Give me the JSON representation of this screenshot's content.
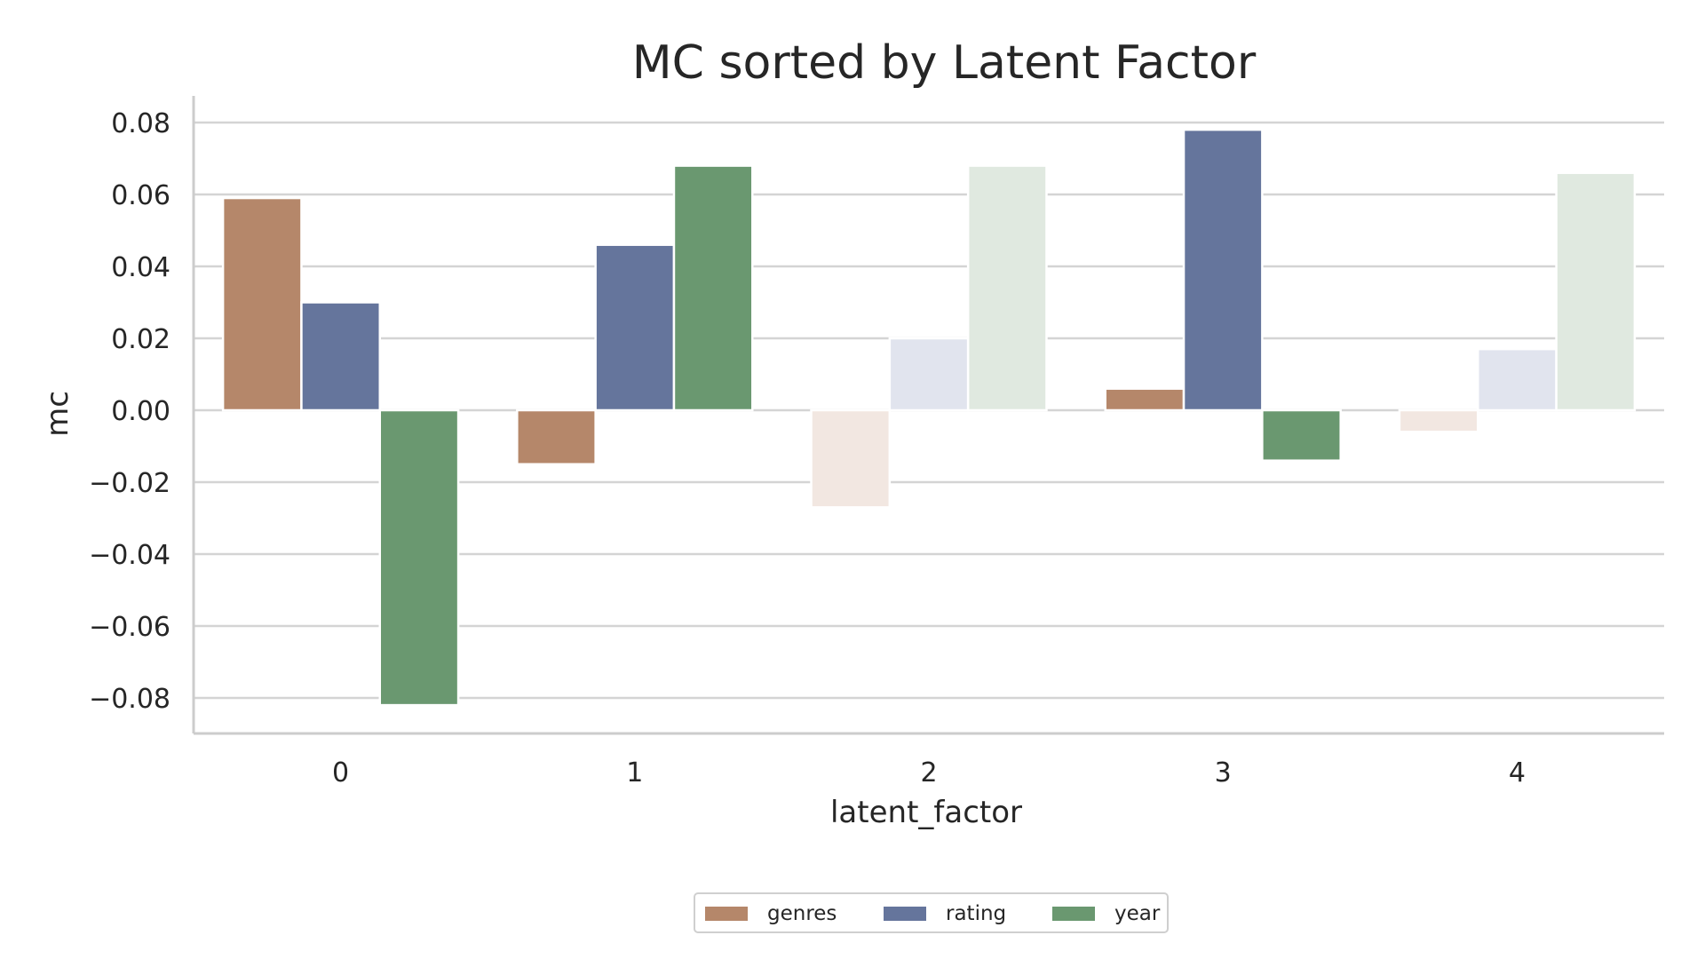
{
  "chart_data": {
    "type": "bar",
    "title": "MC sorted by Latent Factor",
    "xlabel": "latent_factor",
    "ylabel": "mc",
    "categories": [
      "0",
      "1",
      "2",
      "3",
      "4"
    ],
    "ylim": [
      -0.09,
      0.09
    ],
    "yticks": [
      0.08,
      0.06,
      0.04,
      0.02,
      0.0,
      -0.02,
      -0.04,
      -0.06,
      -0.08
    ],
    "ytick_labels": [
      "0.08",
      "0.06",
      "0.04",
      "0.02",
      "0.00",
      "−0.02",
      "−0.04",
      "−0.06",
      "−0.08"
    ],
    "grid": true,
    "legend_position": "bottom-center",
    "series": [
      {
        "name": "genres",
        "color": "#b5876a",
        "faded_color": "#f2e7e1",
        "values": [
          0.059,
          -0.015,
          -0.027,
          0.006,
          -0.006
        ]
      },
      {
        "name": "rating",
        "color": "#65759c",
        "faded_color": "#e1e4ee",
        "values": [
          0.03,
          0.046,
          0.02,
          0.078,
          0.017
        ]
      },
      {
        "name": "year",
        "color": "#6a9870",
        "faded_color": "#e0e9e0",
        "values": [
          -0.082,
          0.068,
          0.068,
          -0.014,
          0.066
        ]
      }
    ],
    "highlighted_categories": [
      "0",
      "1",
      "3"
    ]
  }
}
